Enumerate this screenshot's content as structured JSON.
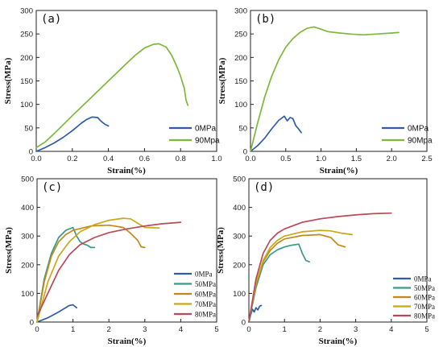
{
  "chart_data": [
    {
      "panel_label": "(a)",
      "type": "line",
      "xlabel": "Strain(%)",
      "ylabel": "Stress(MPa)",
      "xlim": [
        0,
        1.0
      ],
      "ylim": [
        0,
        300
      ],
      "xticks": [
        0.0,
        0.2,
        0.4,
        0.6,
        0.8,
        1.0
      ],
      "yticks": [
        0,
        50,
        100,
        150,
        200,
        250,
        300
      ],
      "xtick_labels": [
        "0.0",
        "0.2",
        "0.4",
        "0.6",
        "0.8",
        "1.0"
      ],
      "ytick_labels": [
        "0",
        "50",
        "100",
        "150",
        "200",
        "250",
        "300"
      ],
      "legend_position": "bottom-right",
      "series": [
        {
          "name": "0MPa",
          "color": "#2E5CA8",
          "x": [
            0,
            0.05,
            0.1,
            0.15,
            0.2,
            0.25,
            0.28,
            0.31,
            0.34,
            0.36,
            0.38,
            0.4
          ],
          "y": [
            0,
            8,
            18,
            30,
            44,
            60,
            68,
            73,
            72,
            64,
            58,
            54
          ]
        },
        {
          "name": "90Mpa",
          "color": "#7DB83A",
          "x": [
            0,
            0.05,
            0.1,
            0.2,
            0.3,
            0.4,
            0.5,
            0.55,
            0.6,
            0.65,
            0.68,
            0.72,
            0.75,
            0.78,
            0.8,
            0.82,
            0.83,
            0.84
          ],
          "y": [
            8,
            20,
            38,
            76,
            113,
            150,
            187,
            205,
            220,
            228,
            229,
            222,
            205,
            180,
            160,
            135,
            110,
            98
          ]
        }
      ]
    },
    {
      "panel_label": "(b)",
      "type": "line",
      "xlabel": "Strain(%)",
      "ylabel": "Stress(MPa)",
      "xlim": [
        0,
        2.5
      ],
      "ylim": [
        0,
        300
      ],
      "xticks": [
        0.0,
        0.5,
        1.0,
        1.5,
        2.0,
        2.5
      ],
      "yticks": [
        0,
        50,
        100,
        150,
        200,
        250,
        300
      ],
      "xtick_labels": [
        "0.0",
        "0.5",
        "1.0",
        "1.5",
        "2.0",
        "2.5"
      ],
      "ytick_labels": [
        "0",
        "50",
        "100",
        "150",
        "200",
        "250",
        "300"
      ],
      "legend_position": "bottom-right",
      "series": [
        {
          "name": "0MPa",
          "color": "#2E5CA8",
          "x": [
            0,
            0.1,
            0.2,
            0.3,
            0.4,
            0.48,
            0.52,
            0.56,
            0.6,
            0.64,
            0.68,
            0.72
          ],
          "y": [
            0,
            12,
            28,
            48,
            66,
            75,
            65,
            72,
            70,
            55,
            48,
            40
          ]
        },
        {
          "name": "90Mpa",
          "color": "#7DB83A",
          "x": [
            0,
            0.1,
            0.2,
            0.3,
            0.4,
            0.5,
            0.6,
            0.7,
            0.8,
            0.9,
            1.0,
            1.1,
            1.2,
            1.4,
            1.6,
            1.8,
            2.0,
            2.1
          ],
          "y": [
            0,
            60,
            115,
            160,
            195,
            222,
            240,
            253,
            262,
            265,
            260,
            255,
            253,
            250,
            248,
            250,
            252,
            253
          ]
        }
      ]
    },
    {
      "panel_label": "(c)",
      "type": "line",
      "xlabel": "Strain(%)",
      "ylabel": "Stress(MPa)",
      "xlim": [
        0,
        5
      ],
      "ylim": [
        0,
        500
      ],
      "xticks": [
        0,
        1,
        2,
        3,
        4,
        5
      ],
      "yticks": [
        0,
        100,
        200,
        300,
        400,
        500
      ],
      "xtick_labels": [
        "0",
        "1",
        "2",
        "3",
        "4",
        "5"
      ],
      "ytick_labels": [
        "0",
        "100",
        "200",
        "300",
        "400",
        "500"
      ],
      "legend_position": "bottom-right",
      "series": [
        {
          "name": "0MPa",
          "color": "#2E5CA8",
          "x": [
            0,
            0.3,
            0.6,
            0.9,
            1.0,
            1.05,
            1.1
          ],
          "y": [
            0,
            15,
            35,
            58,
            60,
            55,
            50
          ]
        },
        {
          "name": "50MPa",
          "color": "#3A9A8A",
          "x": [
            0,
            0.2,
            0.4,
            0.6,
            0.8,
            1.0,
            1.1,
            1.2,
            1.3,
            1.4,
            1.5,
            1.6
          ],
          "y": [
            0,
            150,
            240,
            295,
            320,
            330,
            300,
            280,
            272,
            268,
            260,
            260
          ]
        },
        {
          "name": "60MPa",
          "color": "#C08A1A",
          "x": [
            0,
            0.2,
            0.4,
            0.6,
            0.8,
            1.0,
            1.5,
            2.0,
            2.4,
            2.6,
            2.8,
            2.9,
            3.0
          ],
          "y": [
            0,
            140,
            230,
            280,
            305,
            320,
            335,
            338,
            330,
            310,
            285,
            262,
            260
          ]
        },
        {
          "name": "70MPa",
          "color": "#C8A818",
          "x": [
            0,
            0.3,
            0.6,
            0.9,
            1.2,
            1.6,
            2.0,
            2.4,
            2.6,
            2.8,
            3.0,
            3.4
          ],
          "y": [
            0,
            140,
            230,
            280,
            315,
            340,
            355,
            362,
            360,
            345,
            330,
            328
          ]
        },
        {
          "name": "80MPa",
          "color": "#B84A5A",
          "x": [
            0,
            0.3,
            0.6,
            0.9,
            1.2,
            1.6,
            2.0,
            2.5,
            3.0,
            3.5,
            4.0
          ],
          "y": [
            20,
            100,
            180,
            235,
            270,
            295,
            312,
            325,
            335,
            343,
            348
          ]
        }
      ]
    },
    {
      "panel_label": "(d)",
      "type": "line",
      "xlabel": "Strain(%)",
      "ylabel": "Stress(MPa)",
      "xlim": [
        0,
        5
      ],
      "ylim": [
        0,
        500
      ],
      "xticks": [
        0,
        1,
        2,
        3,
        4,
        5
      ],
      "yticks": [
        0,
        100,
        200,
        300,
        400,
        500
      ],
      "xtick_labels": [
        "0",
        "1",
        "2",
        "3",
        "4",
        "5"
      ],
      "ytick_labels": [
        "0",
        "100",
        "200",
        "300",
        "400",
        "500"
      ],
      "legend_position": "bottom-right",
      "series": [
        {
          "name": "0MPa",
          "color": "#2E5CA8",
          "x": [
            0,
            0.05,
            0.1,
            0.15,
            0.2,
            0.25,
            0.3,
            0.35
          ],
          "y": [
            0,
            25,
            45,
            35,
            50,
            42,
            55,
            58
          ]
        },
        {
          "name": "50MPa",
          "color": "#3A9A8A",
          "x": [
            0,
            0.2,
            0.4,
            0.6,
            0.8,
            1.0,
            1.2,
            1.4,
            1.5,
            1.6,
            1.7
          ],
          "y": [
            0,
            120,
            200,
            235,
            252,
            262,
            268,
            272,
            240,
            215,
            210
          ]
        },
        {
          "name": "60MPa",
          "color": "#C08A1A",
          "x": [
            0,
            0.2,
            0.4,
            0.6,
            0.8,
            1.0,
            1.5,
            2.0,
            2.3,
            2.5,
            2.7
          ],
          "y": [
            0,
            130,
            210,
            250,
            275,
            290,
            302,
            305,
            295,
            270,
            262
          ]
        },
        {
          "name": "70MPa",
          "color": "#C8A818",
          "x": [
            0,
            0.2,
            0.4,
            0.6,
            0.8,
            1.0,
            1.5,
            2.0,
            2.3,
            2.6,
            2.9
          ],
          "y": [
            0,
            135,
            215,
            260,
            285,
            300,
            315,
            320,
            318,
            310,
            305
          ]
        },
        {
          "name": "80MPa",
          "color": "#B84A5A",
          "x": [
            0,
            0.2,
            0.4,
            0.6,
            0.8,
            1.0,
            1.5,
            2.0,
            2.5,
            3.0,
            3.5,
            4.0
          ],
          "y": [
            0,
            150,
            240,
            285,
            310,
            325,
            348,
            360,
            368,
            374,
            378,
            380
          ]
        }
      ]
    }
  ]
}
